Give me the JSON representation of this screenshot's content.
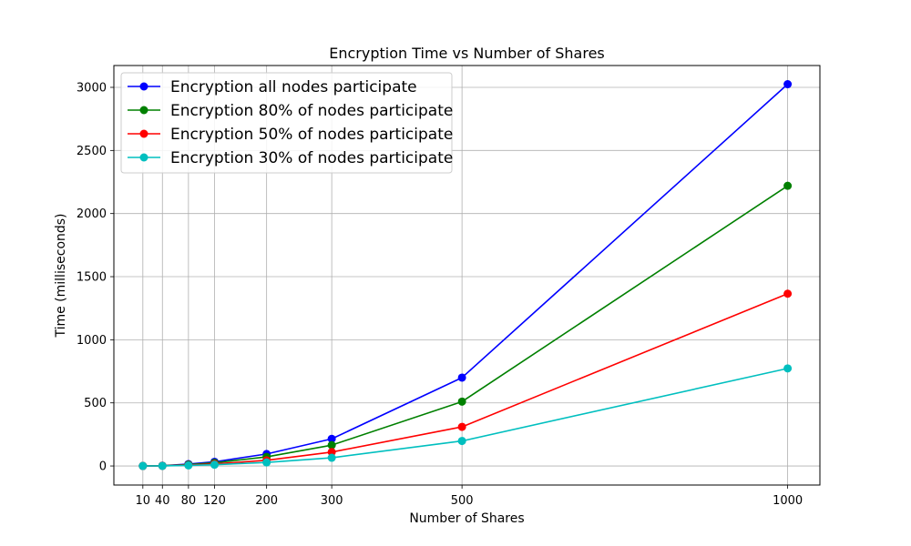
{
  "chart_data": {
    "type": "line",
    "title": "Encryption Time vs Number of Shares",
    "xlabel": "Number of Shares",
    "ylabel": "Time (milliseconds)",
    "x": [
      10,
      40,
      80,
      120,
      200,
      300,
      500,
      1000
    ],
    "x_tick_labels": [
      "10",
      "40",
      "80",
      "120",
      "200",
      "300",
      "500",
      "1000"
    ],
    "y_ticks": [
      0,
      500,
      1000,
      1500,
      2000,
      2500,
      3000
    ],
    "y_tick_labels": [
      "0",
      "500",
      "1000",
      "1500",
      "2000",
      "2500",
      "3000"
    ],
    "xlim": [
      -34.5,
      1049.5
    ],
    "ylim": [
      -151,
      3173
    ],
    "grid": true,
    "legend_position": "top-left",
    "series": [
      {
        "name": "Encryption all nodes participate",
        "color": "#0000ff",
        "values": [
          0.3,
          2,
          15,
          33,
          95,
          215,
          700,
          3025
        ]
      },
      {
        "name": "Encryption 80% of nodes participate",
        "color": "#008000",
        "values": [
          0.2,
          1.5,
          11,
          25,
          72,
          165,
          510,
          2220
        ]
      },
      {
        "name": "Encryption 50% of nodes participate",
        "color": "#ff0000",
        "values": [
          0.1,
          1,
          7,
          16,
          45,
          110,
          310,
          1365
        ]
      },
      {
        "name": "Encryption 30% of nodes participate",
        "color": "#00bfbf",
        "values": [
          0.1,
          0.6,
          4.5,
          10,
          28,
          65,
          198,
          773
        ]
      }
    ]
  }
}
